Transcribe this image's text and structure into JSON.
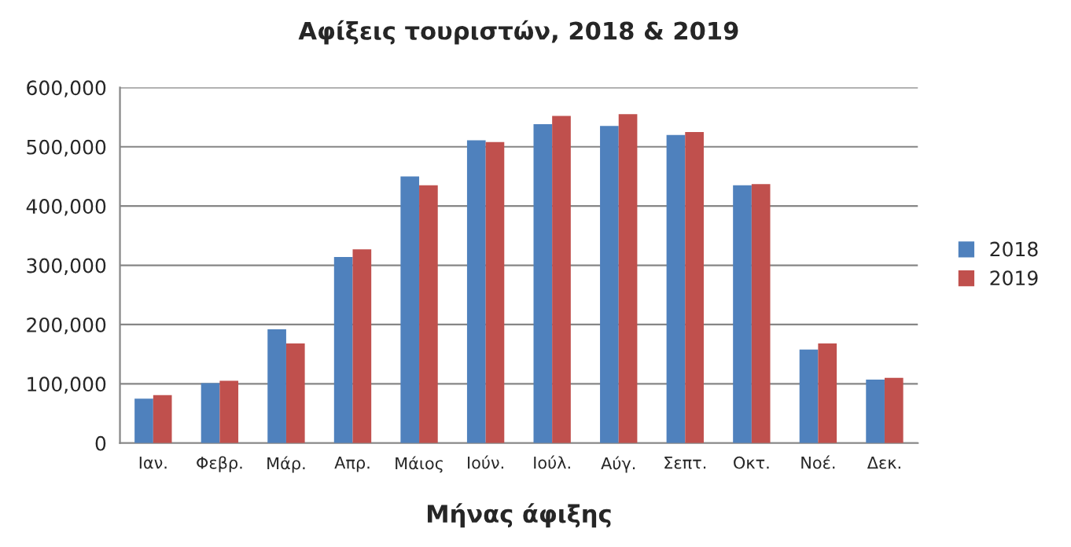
{
  "chart_data": {
    "type": "bar",
    "title": "Αφίξεις τουριστών, 2018 & 2019",
    "xlabel": "Μήνας άφιξης",
    "categories": [
      "Ιαν.",
      "Φεβρ.",
      "Μάρ.",
      "Απρ.",
      "Μάιος",
      "Ιούν.",
      "Ιούλ.",
      "Αύγ.",
      "Σεπτ.",
      "Οκτ.",
      "Νοέ.",
      "Δεκ."
    ],
    "series": [
      {
        "name": "2018",
        "color": "#4f81bd",
        "values": [
          75000,
          101000,
          192000,
          314000,
          450000,
          511000,
          538000,
          535000,
          520000,
          435000,
          158000,
          107000
        ]
      },
      {
        "name": "2019",
        "color": "#c0504d",
        "values": [
          81000,
          105000,
          168000,
          327000,
          435000,
          508000,
          552000,
          555000,
          525000,
          437000,
          168000,
          110000
        ]
      }
    ],
    "ylim": [
      0,
      600000
    ],
    "yticks": [
      {
        "value": 0,
        "label": "0"
      },
      {
        "value": 100000,
        "label": "100,000"
      },
      {
        "value": 200000,
        "label": "200,000"
      },
      {
        "value": 300000,
        "label": "300,000"
      },
      {
        "value": 400000,
        "label": "400,000"
      },
      {
        "value": 500000,
        "label": "500,000"
      },
      {
        "value": 600000,
        "label": "600,000"
      }
    ],
    "grid": "y",
    "legend": "right"
  }
}
